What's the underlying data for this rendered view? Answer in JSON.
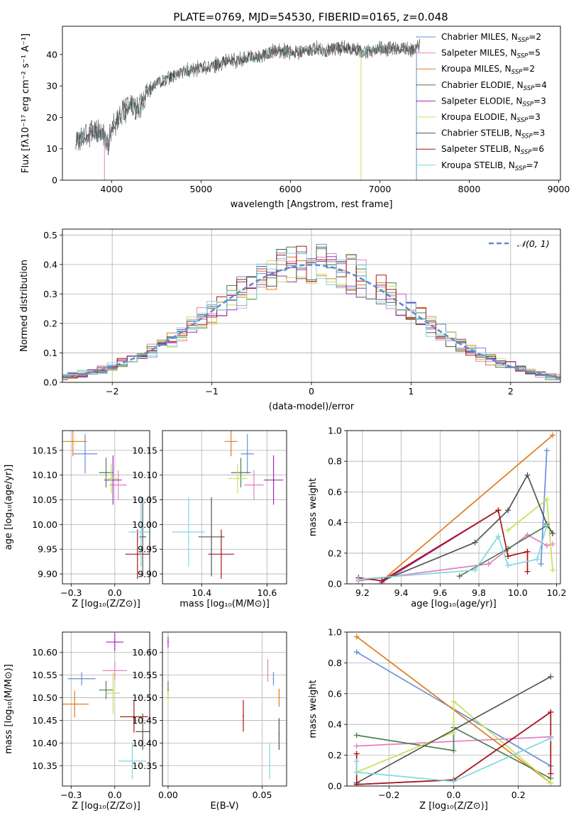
{
  "figure_title": "PLATE=0769, MJD=54530, FIBERID=0165, z=0.048",
  "colors": {
    "Chabrier MILES": "#6a8fd8",
    "Salpeter MILES": "#e67fc0",
    "Kroupa MILES": "#e07b1f",
    "Chabrier ELODIE": "#4f7f4f",
    "Salpeter ELODIE": "#9b2fae",
    "Kroupa ELODIE": "#c8df5a",
    "Chabrier STELIB": "#555555",
    "Salpeter STELIB": "#a81717",
    "Kroupa STELIB": "#7fd8e0"
  },
  "chart_data": [
    {
      "id": "spectrum",
      "type": "line",
      "xlabel": "wavelength [Angstrom, rest frame]",
      "ylabel": "Flux [fλ10⁻¹⁷ erg cm⁻² s⁻¹ A⁻¹]",
      "xlim": [
        3450,
        9020
      ],
      "ylim": [
        0,
        49
      ],
      "xticks": [
        4000,
        5000,
        6000,
        7000,
        8000,
        9000
      ],
      "yticks": [
        0,
        10,
        20,
        30,
        40
      ],
      "legend": "top-right",
      "legend_entries": [
        {
          "model": "Chabrier MILES",
          "nssp": "2"
        },
        {
          "model": "Salpeter MILES",
          "nssp": "5"
        },
        {
          "model": "Kroupa MILES",
          "nssp": "2"
        },
        {
          "model": "Chabrier ELODIE",
          "nssp": "4"
        },
        {
          "model": "Salpeter ELODIE",
          "nssp": "3"
        },
        {
          "model": "Kroupa ELODIE",
          "nssp": "3"
        },
        {
          "model": "Chabrier STELIB",
          "nssp": "3"
        },
        {
          "model": "Salpeter STELIB",
          "nssp": "6"
        },
        {
          "model": "Kroupa STELIB",
          "nssp": "7"
        }
      ],
      "continuum": [
        [
          3600,
          12
        ],
        [
          3700,
          14
        ],
        [
          3800,
          16
        ],
        [
          3900,
          15
        ],
        [
          3950,
          11
        ],
        [
          4000,
          16
        ],
        [
          4100,
          21
        ],
        [
          4200,
          24
        ],
        [
          4300,
          22
        ],
        [
          4400,
          28
        ],
        [
          4500,
          31
        ],
        [
          4600,
          32
        ],
        [
          4700,
          33
        ],
        [
          4800,
          35
        ],
        [
          4900,
          35
        ],
        [
          5000,
          36
        ],
        [
          5100,
          36
        ],
        [
          5200,
          37
        ],
        [
          5300,
          38
        ],
        [
          5400,
          38
        ],
        [
          5500,
          39
        ],
        [
          5600,
          39
        ],
        [
          5700,
          40
        ],
        [
          5800,
          41
        ],
        [
          5900,
          41
        ],
        [
          6000,
          41
        ],
        [
          6100,
          41
        ],
        [
          6200,
          41
        ],
        [
          6300,
          42
        ],
        [
          6400,
          41
        ],
        [
          6500,
          42
        ],
        [
          6600,
          42
        ],
        [
          6700,
          42
        ],
        [
          6800,
          41
        ],
        [
          6900,
          41
        ],
        [
          7000,
          42
        ],
        [
          7100,
          42
        ],
        [
          7200,
          42
        ],
        [
          7300,
          42
        ],
        [
          7400,
          42
        ],
        [
          7450,
          43
        ]
      ],
      "spikes": [
        [
          3920,
          0
        ],
        [
          6790,
          0
        ],
        [
          7410,
          0
        ]
      ]
    },
    {
      "id": "residuals",
      "type": "histogram",
      "xlabel": "(data-model)/error",
      "ylabel": "Normed distribution",
      "xlim": [
        -2.5,
        2.5
      ],
      "ylim": [
        0,
        0.52
      ],
      "xticks": [
        -2,
        -1,
        0,
        1,
        2
      ],
      "yticks": [
        0.0,
        0.1,
        0.2,
        0.3,
        0.4,
        0.5
      ],
      "grid": true,
      "bin_width": 0.1,
      "reference_label": "𝒩(0, 1)",
      "reference_color": "#5b8bd4",
      "legend": "top-right"
    },
    {
      "id": "age_vs_Z",
      "type": "scatter",
      "xlabel": "Z [log₁₀(Z/Z⊙)]",
      "ylabel": "age  [log₁₀(age/yr)]",
      "xlim": [
        -0.3,
        0.2
      ],
      "ylim": [
        9.88,
        10.19
      ],
      "xticks": [
        -0.25,
        0.0
      ],
      "yticks": [
        9.9,
        9.95,
        10.0,
        10.05,
        10.1,
        10.15
      ],
      "grid": true,
      "points": [
        {
          "model": "Chabrier MILES",
          "x": -0.17,
          "y": 10.143,
          "xerr": 0.07,
          "yerr": 0.04
        },
        {
          "model": "Salpeter MILES",
          "x": 0.02,
          "y": 10.08,
          "xerr": 0.05,
          "yerr": 0.03
        },
        {
          "model": "Kroupa MILES",
          "x": -0.24,
          "y": 10.168,
          "xerr": 0.08,
          "yerr": 0.03
        },
        {
          "model": "Chabrier ELODIE",
          "x": -0.05,
          "y": 10.105,
          "xerr": 0.04,
          "yerr": 0.03
        },
        {
          "model": "Salpeter ELODIE",
          "x": -0.01,
          "y": 10.09,
          "xerr": 0.05,
          "yerr": 0.05
        },
        {
          "model": "Kroupa ELODIE",
          "x": -0.02,
          "y": 10.093,
          "xerr": 0.04,
          "yerr": 0.03
        },
        {
          "model": "Chabrier STELIB",
          "x": 0.16,
          "y": 9.975,
          "xerr": 0.02,
          "yerr": 0.08
        },
        {
          "model": "Salpeter STELIB",
          "x": 0.13,
          "y": 9.94,
          "xerr": 0.07,
          "yerr": 0.05
        },
        {
          "model": "Kroupa STELIB",
          "x": 0.15,
          "y": 9.985,
          "xerr": 0.07,
          "yerr": 0.07
        }
      ]
    },
    {
      "id": "age_vs_mass",
      "type": "scatter",
      "xlabel": "mass [log₁₀(M/M⊙)]",
      "ylabel": "",
      "xlim": [
        10.28,
        10.66
      ],
      "ylim": [
        9.88,
        10.19
      ],
      "xticks": [
        10.4,
        10.6
      ],
      "yticks": [
        9.9,
        9.95,
        10.0,
        10.05,
        10.1,
        10.15
      ],
      "grid": true,
      "points": [
        {
          "model": "Chabrier MILES",
          "x": 10.54,
          "y": 10.143,
          "xerr": 0.02,
          "yerr": 0.04
        },
        {
          "model": "Salpeter MILES",
          "x": 10.56,
          "y": 10.08,
          "xerr": 0.03,
          "yerr": 0.03
        },
        {
          "model": "Kroupa MILES",
          "x": 10.49,
          "y": 10.168,
          "xerr": 0.02,
          "yerr": 0.03
        },
        {
          "model": "Chabrier ELODIE",
          "x": 10.52,
          "y": 10.105,
          "xerr": 0.03,
          "yerr": 0.03
        },
        {
          "model": "Salpeter ELODIE",
          "x": 10.62,
          "y": 10.09,
          "xerr": 0.03,
          "yerr": 0.05
        },
        {
          "model": "Kroupa ELODIE",
          "x": 10.51,
          "y": 10.093,
          "xerr": 0.03,
          "yerr": 0.03
        },
        {
          "model": "Chabrier STELIB",
          "x": 10.43,
          "y": 9.975,
          "xerr": 0.04,
          "yerr": 0.08
        },
        {
          "model": "Salpeter STELIB",
          "x": 10.46,
          "y": 9.94,
          "xerr": 0.04,
          "yerr": 0.05
        },
        {
          "model": "Kroupa STELIB",
          "x": 10.36,
          "y": 9.985,
          "xerr": 0.05,
          "yerr": 0.07
        }
      ]
    },
    {
      "id": "weight_vs_age",
      "type": "line",
      "xlabel": "age  [log₁₀(age/yr)]",
      "ylabel": "mass weight",
      "xlim": [
        9.12,
        10.22
      ],
      "ylim": [
        0,
        1.0
      ],
      "xticks": [
        9.2,
        9.4,
        9.6,
        9.8,
        10.0,
        10.2
      ],
      "yticks": [
        0.0,
        0.2,
        0.4,
        0.6,
        0.8,
        1.0
      ],
      "grid": true,
      "series": [
        {
          "model": "Chabrier MILES",
          "x": [
            10.12,
            10.15
          ],
          "y": [
            0.13,
            0.87
          ]
        },
        {
          "model": "Salpeter MILES",
          "x": [
            9.18,
            9.85,
            10.05,
            10.15,
            10.18
          ],
          "y": [
            0.02,
            0.13,
            0.32,
            0.25,
            0.26
          ]
        },
        {
          "model": "Kroupa MILES",
          "x": [
            9.3,
            10.18
          ],
          "y": [
            0.02,
            0.97
          ]
        },
        {
          "model": "Chabrier ELODIE",
          "x": [
            9.7,
            9.95,
            10.15,
            10.18
          ],
          "y": [
            0.05,
            0.23,
            0.38,
            0.33
          ]
        },
        {
          "model": "Salpeter ELODIE",
          "x": [
            9.3,
            9.9
          ],
          "y": [
            0.01,
            0.48
          ]
        },
        {
          "model": "Kroupa ELODIE",
          "x": [
            9.95,
            10.15,
            10.18
          ],
          "y": [
            0.35,
            0.55,
            0.09
          ]
        },
        {
          "model": "Chabrier STELIB",
          "x": [
            9.3,
            9.78,
            9.95,
            10.05,
            10.15,
            10.18
          ],
          "y": [
            0.02,
            0.27,
            0.48,
            0.71,
            0.39,
            0.33
          ]
        },
        {
          "model": "Salpeter STELIB",
          "x": [
            9.18,
            9.3,
            9.9,
            9.95,
            10.05,
            10.05
          ],
          "y": [
            0.04,
            0.02,
            0.48,
            0.18,
            0.21,
            0.08
          ]
        },
        {
          "model": "Kroupa STELIB",
          "x": [
            9.18,
            9.78,
            9.9,
            9.95,
            10.1,
            10.15
          ],
          "y": [
            0.03,
            0.09,
            0.31,
            0.12,
            0.16,
            0.38
          ]
        }
      ]
    },
    {
      "id": "mass_vs_Z",
      "type": "scatter",
      "xlabel": "Z [log₁₀(Z/Z⊙)]",
      "ylabel": "mass [log₁₀(M/M⊙)]",
      "xlim": [
        -0.3,
        0.2
      ],
      "ylim": [
        10.305,
        10.645
      ],
      "xticks": [
        -0.25,
        0.0
      ],
      "yticks": [
        10.35,
        10.4,
        10.45,
        10.5,
        10.55,
        10.6
      ],
      "grid": true,
      "points": [
        {
          "model": "Chabrier MILES",
          "x": -0.19,
          "y": 10.542,
          "xerr": 0.08,
          "yerr": 0.015
        },
        {
          "model": "Salpeter MILES",
          "x": 0.0,
          "y": 10.56,
          "xerr": 0.07,
          "yerr": 0.02
        },
        {
          "model": "Kroupa MILES",
          "x": -0.23,
          "y": 10.486,
          "xerr": 0.08,
          "yerr": 0.03
        },
        {
          "model": "Chabrier ELODIE",
          "x": -0.05,
          "y": 10.517,
          "xerr": 0.04,
          "yerr": 0.02
        },
        {
          "model": "Salpeter ELODIE",
          "x": 0.0,
          "y": 10.623,
          "xerr": 0.05,
          "yerr": 0.02
        },
        {
          "model": "Kroupa ELODIE",
          "x": -0.01,
          "y": 10.51,
          "xerr": 0.04,
          "yerr": 0.045
        },
        {
          "model": "Chabrier STELIB",
          "x": 0.16,
          "y": 10.425,
          "xerr": 0.04,
          "yerr": 0.04
        },
        {
          "model": "Salpeter STELIB",
          "x": 0.11,
          "y": 10.458,
          "xerr": 0.08,
          "yerr": 0.035
        },
        {
          "model": "Kroupa STELIB",
          "x": 0.1,
          "y": 10.36,
          "xerr": 0.08,
          "yerr": 0.04
        }
      ]
    },
    {
      "id": "mass_vs_ebv",
      "type": "scatter",
      "xlabel": "E(B-V)",
      "ylabel": "",
      "xlim": [
        -0.003,
        0.063
      ],
      "ylim": [
        10.305,
        10.645
      ],
      "xticks": [
        0.0,
        0.05
      ],
      "yticks": [
        10.35,
        10.4,
        10.45,
        10.5,
        10.55,
        10.6
      ],
      "grid": true,
      "points": [
        {
          "model": "Chabrier MILES",
          "x": 0.056,
          "y": 10.542,
          "xerr": 0.0,
          "yerr": 0.015
        },
        {
          "model": "Salpeter MILES",
          "x": 0.053,
          "y": 10.56,
          "xerr": 0.0,
          "yerr": 0.025
        },
        {
          "model": "Kroupa MILES",
          "x": 0.059,
          "y": 10.5,
          "xerr": 0.0,
          "yerr": 0.02
        },
        {
          "model": "Chabrier ELODIE",
          "x": 0.0,
          "y": 10.517,
          "xerr": 0.0,
          "yerr": 0.02
        },
        {
          "model": "Salpeter ELODIE",
          "x": 0.0,
          "y": 10.623,
          "xerr": 0.0,
          "yerr": 0.012
        },
        {
          "model": "Kroupa ELODIE",
          "x": 0.0,
          "y": 10.5,
          "xerr": 0.0,
          "yerr": 0.015
        },
        {
          "model": "Chabrier STELIB",
          "x": 0.059,
          "y": 10.42,
          "xerr": 0.0,
          "yerr": 0.035
        },
        {
          "model": "Salpeter STELIB",
          "x": 0.04,
          "y": 10.46,
          "xerr": 0.0,
          "yerr": 0.035
        },
        {
          "model": "Kroupa STELIB",
          "x": 0.054,
          "y": 10.36,
          "xerr": 0.0,
          "yerr": 0.04
        }
      ]
    },
    {
      "id": "weight_vs_Z",
      "type": "line",
      "xlabel": "Z [log₁₀(Z/Z⊙)]",
      "ylabel": "mass weight",
      "xlim": [
        -0.33,
        0.33
      ],
      "ylim": [
        0,
        1.0
      ],
      "xticks": [
        -0.2,
        0.0,
        0.2
      ],
      "yticks": [
        0.0,
        0.2,
        0.4,
        0.6,
        0.8,
        1.0
      ],
      "grid": true,
      "series": [
        {
          "model": "Chabrier MILES",
          "x": [
            -0.3,
            0.3
          ],
          "y": [
            0.87,
            0.13
          ]
        },
        {
          "model": "Salpeter MILES",
          "x": [
            -0.3,
            0.3
          ],
          "y": [
            0.26,
            0.32
          ]
        },
        {
          "model": "Kroupa MILES",
          "x": [
            -0.3,
            0.3
          ],
          "y": [
            0.97,
            0.02
          ]
        },
        {
          "model": "Chabrier ELODIE",
          "x": [
            -0.3,
            0.0,
            0.0,
            0.3
          ],
          "y": [
            0.33,
            0.23,
            0.38,
            0.05
          ]
        },
        {
          "model": "Salpeter ELODIE",
          "x": [
            -0.3,
            0.0,
            0.3
          ],
          "y": [
            0.01,
            0.04,
            0.48
          ]
        },
        {
          "model": "Kroupa ELODIE",
          "x": [
            -0.3,
            0.0,
            0.0,
            0.3
          ],
          "y": [
            0.09,
            0.35,
            0.55,
            0.02
          ]
        },
        {
          "model": "Chabrier STELIB",
          "x": [
            -0.3,
            0.3
          ],
          "y": [
            0.02,
            0.71
          ]
        },
        {
          "model": "Salpeter STELIB",
          "x": [
            -0.3,
            -0.3,
            0.0,
            0.3,
            0.3
          ],
          "y": [
            0.21,
            0.01,
            0.04,
            0.48,
            0.08
          ]
        },
        {
          "model": "Kroupa STELIB",
          "x": [
            -0.3,
            -0.3,
            0.0,
            0.3
          ],
          "y": [
            0.16,
            0.09,
            0.03,
            0.31
          ]
        }
      ]
    }
  ]
}
